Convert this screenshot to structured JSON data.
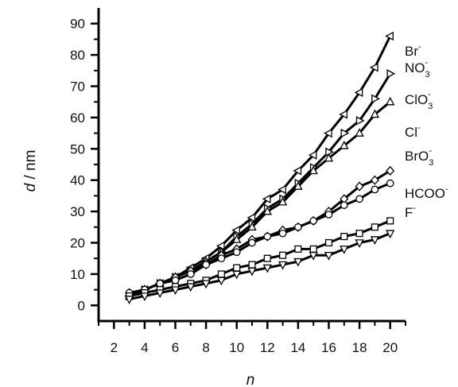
{
  "chart_data": {
    "type": "line",
    "xlabel": "n",
    "ylabel": {
      "var": "d",
      "unit": " / nm"
    },
    "xlim": [
      1,
      21
    ],
    "ylim": [
      -5,
      95
    ],
    "xticks": [
      2,
      4,
      6,
      8,
      10,
      12,
      14,
      16,
      18,
      20
    ],
    "yticks": [
      0,
      10,
      20,
      30,
      40,
      50,
      60,
      70,
      80,
      90
    ],
    "x": [
      3,
      4,
      5,
      6,
      7,
      8,
      9,
      10,
      11,
      12,
      13,
      14,
      15,
      16,
      17,
      18,
      19,
      20
    ],
    "series": [
      {
        "name": "Br",
        "label": {
          "base": "Br",
          "sub": "",
          "sup": "-"
        },
        "marker": "triangle-left",
        "values": [
          3,
          5,
          7,
          9,
          12,
          15,
          19,
          24,
          28,
          34,
          37,
          43,
          48,
          55,
          61,
          68,
          76,
          86
        ]
      },
      {
        "name": "NO3",
        "label": {
          "base": "NO",
          "sub": "3",
          "sup": "-"
        },
        "marker": "triangle-right",
        "values": [
          3,
          5,
          7,
          9,
          11,
          14,
          17,
          22,
          26,
          31,
          34,
          39,
          44,
          49,
          55,
          59,
          66,
          74
        ]
      },
      {
        "name": "ClO3",
        "label": {
          "base": "ClO",
          "sub": "3",
          "sup": "-"
        },
        "marker": "triangle-up",
        "values": [
          3,
          5,
          7,
          9,
          11,
          14,
          17,
          21,
          25,
          30,
          33,
          38,
          43,
          47,
          51,
          55,
          61,
          65
        ]
      },
      {
        "name": "Cl",
        "label": {
          "base": "Cl",
          "sub": "",
          "sup": "-"
        },
        "marker": "diamond",
        "values": [
          4,
          5,
          7,
          9,
          11,
          13,
          16,
          18,
          21,
          22,
          24,
          25,
          27,
          30,
          34,
          38,
          40,
          43
        ]
      },
      {
        "name": "BrO3",
        "label": {
          "base": "BrO",
          "sub": "3",
          "sup": "-"
        },
        "marker": "circle",
        "values": [
          4,
          5,
          7,
          8,
          10,
          13,
          15,
          17,
          20,
          22,
          23,
          25,
          27,
          29,
          32,
          34,
          37,
          39
        ]
      },
      {
        "name": "HCOO",
        "label": {
          "base": "HCOO",
          "sub": "",
          "sup": "-"
        },
        "marker": "square",
        "values": [
          3,
          4,
          5,
          6,
          7,
          8,
          10,
          12,
          13,
          15,
          16,
          18,
          18,
          20,
          22,
          23,
          25,
          27
        ]
      },
      {
        "name": "F",
        "label": {
          "base": "F",
          "sub": "",
          "sup": "-"
        },
        "marker": "triangle-down",
        "values": [
          2,
          3,
          4,
          5,
          6,
          7,
          8,
          10,
          11,
          12,
          13,
          14,
          16,
          16,
          18,
          20,
          21,
          23
        ]
      }
    ],
    "grid": false,
    "legend": "inline-right"
  }
}
